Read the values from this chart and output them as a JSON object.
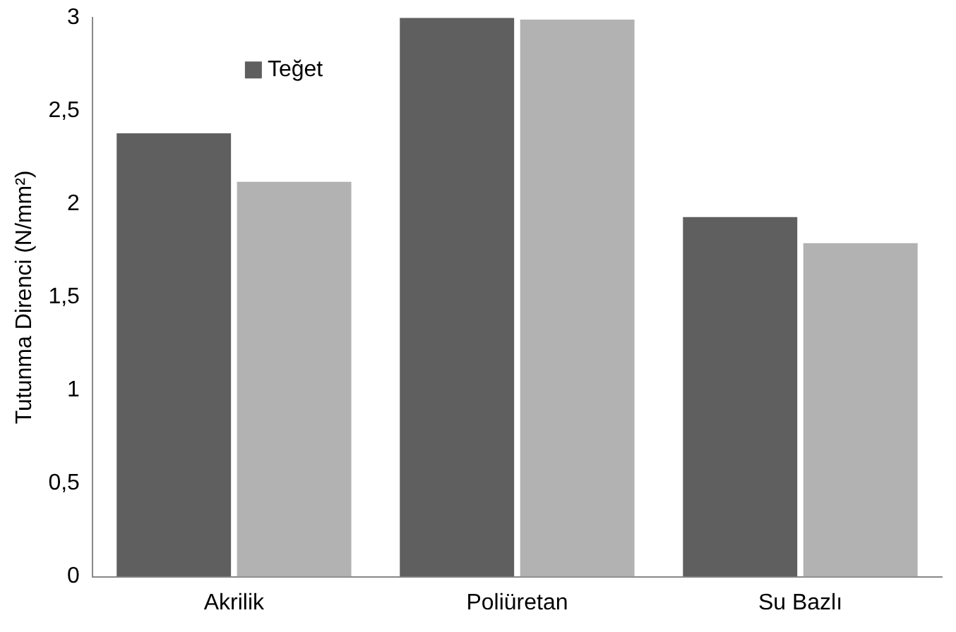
{
  "chart_data": {
    "type": "bar",
    "ylabel": "Tutunma Direnci (N/mm²)",
    "categories": [
      "Akrilik",
      "Poliüretan",
      "Su Bazlı"
    ],
    "series": [
      {
        "name": "Teğet",
        "color": "#5f5f5f",
        "values": [
          2.38,
          3.0,
          1.93
        ]
      },
      {
        "color": "#b2b2b2",
        "values": [
          2.12,
          2.99,
          1.79
        ]
      }
    ],
    "ylim": [
      0,
      3
    ],
    "yticks": [
      0,
      {
        "value": 0.5,
        "label": "0,5"
      },
      1,
      {
        "value": 1.5,
        "label": "1,5"
      },
      2,
      {
        "value": 2.5,
        "label": "2,5"
      },
      3
    ],
    "grid": false,
    "legend": "top left"
  }
}
